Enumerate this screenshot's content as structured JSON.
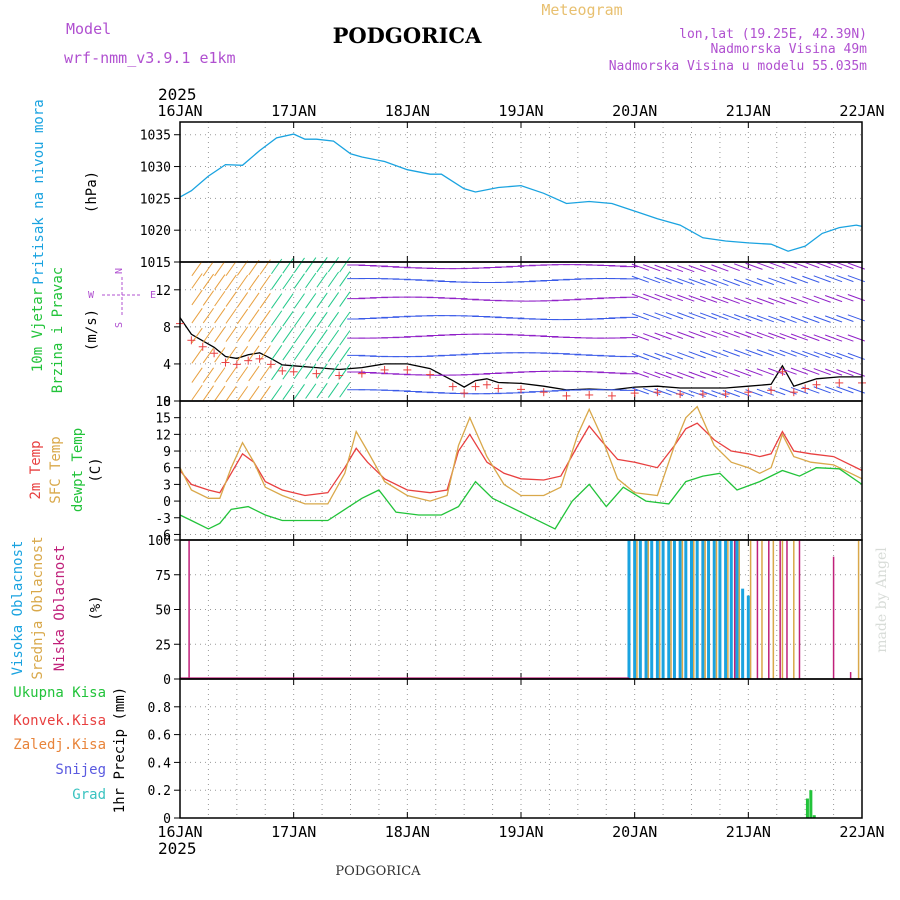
{
  "header": {
    "model_label": "Model",
    "model_name": "wrf-nmm_v3.9.1 e1km",
    "title": "PODGORICA",
    "meteogram_label": "Meteogram",
    "lonlat": "lon,lat (19.25E, 42.39N)",
    "elevation": "Nadmorska Visina 49m",
    "model_elevation": "Nadmorska Visina u modelu 55.035m",
    "footer_title": "PODGORICA",
    "credit": "made by Angel"
  },
  "colors": {
    "pressure": "#1aa3e0",
    "temp2m": "#e84040",
    "sfc_temp": "#d9a84a",
    "dewpoint": "#22c33a",
    "cloud_high": "#1aa3e0",
    "cloud_mid": "#d9a84a",
    "cloud_low": "#c0207a",
    "precip_total": "#22c33a",
    "purple_text": "#b050d0",
    "orange_text": "#e8c070"
  },
  "chart_data": [
    {
      "type": "line",
      "panel": "pressure",
      "ylabel": [
        "Pritisak na nivou mora",
        "(hPa)"
      ],
      "year_label": "2025",
      "x_ticks": [
        "16JAN",
        "17JAN",
        "18JAN",
        "19JAN",
        "20JAN",
        "21JAN",
        "22JAN"
      ],
      "ylim": [
        1015,
        1037
      ],
      "yticks": [
        1015,
        1020,
        1025,
        1030,
        1035
      ],
      "grid": true,
      "series": [
        {
          "x": [
            0,
            0.1,
            0.25,
            0.4,
            0.55,
            0.7,
            0.85,
            1.0,
            1.1,
            1.2,
            1.35,
            1.5,
            1.6,
            1.8,
            2.0,
            2.2,
            2.3,
            2.5,
            2.6,
            2.8,
            3.0,
            3.2,
            3.4,
            3.6,
            3.8,
            4.0,
            4.2,
            4.4,
            4.6,
            4.8,
            5.0,
            5.2,
            5.35,
            5.5,
            5.65,
            5.8,
            5.95,
            6.0
          ],
          "y": [
            1025.2,
            1026.2,
            1028.5,
            1030.3,
            1030.2,
            1032.5,
            1034.5,
            1035.1,
            1034.3,
            1034.3,
            1034.0,
            1032.0,
            1031.5,
            1030.8,
            1029.5,
            1028.8,
            1028.8,
            1026.5,
            1026.0,
            1026.7,
            1027.0,
            1025.8,
            1024.2,
            1024.5,
            1024.2,
            1023.0,
            1021.8,
            1020.8,
            1018.8,
            1018.3,
            1018.0,
            1017.8,
            1016.7,
            1017.5,
            1019.5,
            1020.4,
            1020.8,
            1020.6
          ]
        }
      ]
    },
    {
      "type": "line",
      "panel": "wind",
      "ylabel": [
        "10m Vjetar",
        "Brzina i Pravac",
        "(m/s)"
      ],
      "compass": [
        "N",
        "W",
        "E",
        "S"
      ],
      "ylim": [
        0,
        15
      ],
      "yticks": [
        0,
        4,
        8,
        12
      ],
      "grid": true,
      "series": [
        {
          "name": "speed",
          "x": [
            0,
            0.1,
            0.2,
            0.3,
            0.4,
            0.5,
            0.6,
            0.7,
            0.8,
            0.9,
            1.0,
            1.2,
            1.4,
            1.6,
            1.8,
            2.0,
            2.2,
            2.4,
            2.5,
            2.6,
            2.7,
            2.8,
            3.0,
            3.2,
            3.4,
            3.6,
            3.8,
            4.0,
            4.2,
            4.4,
            4.6,
            4.8,
            5.0,
            5.2,
            5.3,
            5.4,
            5.5,
            5.6,
            5.8,
            6.0
          ],
          "y": [
            9.0,
            7.2,
            6.5,
            5.8,
            4.8,
            4.6,
            5.0,
            5.2,
            4.6,
            3.9,
            3.8,
            3.6,
            3.4,
            3.6,
            4.0,
            4.0,
            3.5,
            2.2,
            1.5,
            2.2,
            2.4,
            2.0,
            1.9,
            1.6,
            1.2,
            1.3,
            1.2,
            1.5,
            1.6,
            1.4,
            1.4,
            1.4,
            1.6,
            1.8,
            3.8,
            1.6,
            2.0,
            2.4,
            2.6,
            2.6
          ]
        }
      ]
    },
    {
      "type": "line",
      "panel": "temperature",
      "ylabel": [
        "2m Temp",
        "SFC Temp",
        "dewpt Temp",
        "(C)"
      ],
      "ylim": [
        -7,
        18
      ],
      "yticks": [
        -6,
        -3,
        0,
        3,
        6,
        9,
        12,
        15,
        18
      ],
      "grid": true,
      "series": [
        {
          "name": "2m Temp",
          "x": [
            0,
            0.1,
            0.25,
            0.35,
            0.45,
            0.55,
            0.65,
            0.75,
            0.9,
            1.1,
            1.3,
            1.45,
            1.55,
            1.65,
            1.8,
            2.0,
            2.2,
            2.35,
            2.45,
            2.55,
            2.7,
            2.85,
            3.0,
            3.2,
            3.35,
            3.5,
            3.6,
            3.7,
            3.85,
            4.0,
            4.2,
            4.35,
            4.45,
            4.55,
            4.7,
            4.85,
            5.0,
            5.1,
            5.2,
            5.3,
            5.4,
            5.55,
            5.75,
            6.0
          ],
          "y": [
            5.5,
            3.0,
            2.0,
            1.5,
            5.0,
            8.5,
            7.0,
            3.5,
            2.0,
            1.0,
            1.5,
            6.0,
            9.5,
            7.0,
            4.0,
            2.0,
            1.5,
            2.0,
            9.0,
            12.0,
            7.0,
            5.0,
            4.0,
            3.8,
            4.5,
            10.0,
            13.5,
            11.0,
            7.5,
            7.0,
            6.0,
            10.0,
            13.0,
            14.0,
            11.0,
            9.0,
            8.5,
            8.0,
            8.5,
            12.5,
            9.0,
            8.5,
            8.0,
            5.5
          ]
        },
        {
          "name": "SFC Temp",
          "x": [
            0,
            0.1,
            0.25,
            0.35,
            0.45,
            0.55,
            0.65,
            0.75,
            0.9,
            1.1,
            1.3,
            1.45,
            1.55,
            1.65,
            1.8,
            2.0,
            2.2,
            2.35,
            2.45,
            2.55,
            2.7,
            2.85,
            3.0,
            3.2,
            3.35,
            3.5,
            3.6,
            3.7,
            3.85,
            4.0,
            4.2,
            4.35,
            4.45,
            4.55,
            4.7,
            4.85,
            5.0,
            5.1,
            5.2,
            5.3,
            5.4,
            5.55,
            5.75,
            6.0
          ],
          "y": [
            6.0,
            2.0,
            0.5,
            0.5,
            6.0,
            10.5,
            7.0,
            2.5,
            1.0,
            -0.5,
            -0.5,
            5.0,
            12.5,
            9.0,
            3.5,
            1.0,
            0.0,
            1.0,
            10.0,
            15.0,
            8.0,
            3.0,
            1.0,
            1.0,
            2.5,
            12.0,
            16.5,
            12.0,
            4.0,
            1.5,
            1.0,
            10.0,
            15.0,
            17.0,
            10.0,
            7.0,
            6.0,
            5.0,
            6.0,
            12.0,
            8.0,
            7.0,
            6.5,
            4.0
          ]
        },
        {
          "name": "dewpt Temp",
          "x": [
            0,
            0.1,
            0.25,
            0.35,
            0.45,
            0.6,
            0.75,
            0.9,
            1.1,
            1.3,
            1.45,
            1.6,
            1.75,
            1.9,
            2.1,
            2.3,
            2.45,
            2.6,
            2.75,
            2.9,
            3.1,
            3.3,
            3.45,
            3.6,
            3.75,
            3.9,
            4.1,
            4.3,
            4.45,
            4.6,
            4.75,
            4.9,
            5.1,
            5.3,
            5.45,
            5.6,
            5.8,
            6.0
          ],
          "y": [
            -2.5,
            -3.5,
            -5.0,
            -4.0,
            -1.5,
            -1.0,
            -2.5,
            -3.5,
            -3.5,
            -3.5,
            -1.5,
            0.5,
            2.0,
            -2.0,
            -2.5,
            -2.5,
            -1.0,
            3.5,
            0.5,
            -1.0,
            -3.0,
            -5.0,
            0.0,
            3.0,
            -1.0,
            2.5,
            0.0,
            -0.5,
            3.5,
            4.5,
            5.0,
            2.0,
            3.5,
            5.5,
            4.5,
            6.0,
            5.8,
            3.0
          ]
        }
      ]
    },
    {
      "type": "bar",
      "panel": "clouds",
      "ylabel": [
        "Visoka Oblacnost",
        "Srednja Oblacnost",
        "Niska Oblacnost",
        "(%)"
      ],
      "ylim": [
        0,
        100
      ],
      "yticks": [
        0,
        25,
        50,
        75,
        100
      ],
      "grid": true,
      "series": [
        {
          "name": "Visoka Oblacnost",
          "x": [
            3.95,
            4.0,
            4.05,
            4.1,
            4.15,
            4.2,
            4.25,
            4.3,
            4.35,
            4.4,
            4.45,
            4.5,
            4.55,
            4.6,
            4.65,
            4.7,
            4.75,
            4.8,
            4.85,
            4.9,
            4.95,
            5.0
          ],
          "y": [
            100,
            100,
            100,
            100,
            100,
            100,
            100,
            100,
            100,
            100,
            100,
            100,
            100,
            100,
            100,
            100,
            100,
            100,
            100,
            100,
            65,
            60
          ]
        },
        {
          "name": "Srednja Oblacnost",
          "x": [
            4.02,
            4.12,
            4.22,
            4.32,
            4.42,
            4.52,
            4.62,
            4.72,
            4.82,
            4.92,
            5.02,
            5.12,
            5.22,
            5.3,
            5.4,
            5.97
          ],
          "y": [
            100,
            100,
            100,
            100,
            100,
            100,
            100,
            100,
            100,
            100,
            100,
            100,
            100,
            100,
            100,
            100
          ]
        },
        {
          "name": "Niska Oblacnost",
          "x": [
            0.08,
            4.88,
            5.08,
            5.18,
            5.28,
            5.34,
            5.45,
            5.75,
            5.9
          ],
          "y": [
            100,
            100,
            100,
            100,
            100,
            100,
            100,
            88,
            5
          ]
        }
      ]
    },
    {
      "type": "bar",
      "panel": "precip",
      "ylabel": [
        "1hr Precip (mm)"
      ],
      "legend": [
        "Ukupna Kisa",
        "Konvek.Kisa",
        "Zaledj.Kisa",
        "Snijeg",
        "Grad"
      ],
      "legend_colors": [
        "#22c33a",
        "#e84040",
        "#e8843a",
        "#5a5ae0",
        "#3ac3c0"
      ],
      "ylim": [
        0,
        1.0
      ],
      "yticks": [
        0,
        0.2,
        0.4,
        0.6,
        0.8
      ],
      "grid": true,
      "series": [
        {
          "name": "Ukupna Kisa",
          "x": [
            5.52,
            5.55,
            5.58
          ],
          "y": [
            0.14,
            0.2,
            0.02
          ]
        }
      ]
    }
  ]
}
